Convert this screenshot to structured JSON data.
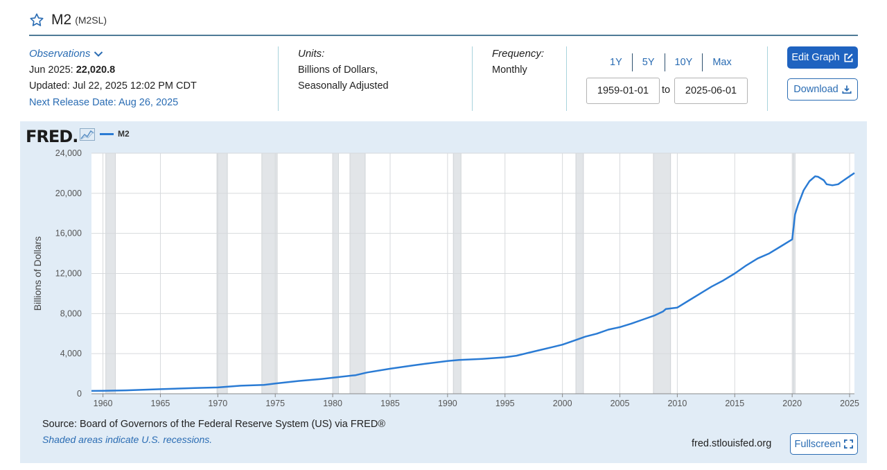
{
  "header": {
    "title": "M2",
    "series_id": "(M2SL)"
  },
  "observations": {
    "label": "Observations",
    "latest_period": "Jun 2025:",
    "latest_value": "22,020.8",
    "updated": "Updated: Jul 22, 2025 12:02 PM CDT",
    "next_release": "Next Release Date: Aug 26, 2025"
  },
  "units": {
    "label": "Units:",
    "line1": "Billions of Dollars,",
    "line2": "Seasonally Adjusted"
  },
  "frequency": {
    "label": "Frequency:",
    "value": "Monthly"
  },
  "range": {
    "buttons": [
      "1Y",
      "5Y",
      "10Y",
      "Max"
    ],
    "start": "1959-01-01",
    "to_label": "to",
    "end": "2025-06-01"
  },
  "actions": {
    "edit_graph": "Edit Graph",
    "download": "Download",
    "fullscreen": "Fullscreen"
  },
  "footer": {
    "source": "Source: Board of Governors of the Federal Reserve System (US) via FRED®",
    "shaded_note": "Shaded areas indicate U.S. recessions.",
    "url": "fred.stlouisfed.org"
  },
  "brand": {
    "logo": "FRED",
    "accent": "#2a7bd4",
    "link": "#2a6cb3",
    "panel_bg": "#e1ecf6"
  },
  "chart_data": {
    "type": "line",
    "ylabel": "Billions of Dollars",
    "ylim": [
      0,
      24000
    ],
    "xlim": [
      1959.0,
      2025.42
    ],
    "yticks": [
      0,
      4000,
      8000,
      12000,
      16000,
      20000,
      24000
    ],
    "ytick_labels": [
      "0",
      "4,000",
      "8,000",
      "12,000",
      "16,000",
      "20,000",
      "24,000"
    ],
    "xticks": [
      1960,
      1965,
      1970,
      1975,
      1980,
      1985,
      1990,
      1995,
      2000,
      2005,
      2010,
      2015,
      2020,
      2025
    ],
    "xtick_labels": [
      "1960",
      "1965",
      "1970",
      "1975",
      "1980",
      "1985",
      "1990",
      "1995",
      "2000",
      "2005",
      "2010",
      "2015",
      "2020",
      "2025"
    ],
    "grid": true,
    "legend": "top-left",
    "series": [
      {
        "name": "M2",
        "color": "#2a7bd4",
        "x": [
          1959.0,
          1960.0,
          1962.0,
          1965.0,
          1968.0,
          1970.0,
          1972.0,
          1974.0,
          1975.0,
          1977.0,
          1979.0,
          1980.0,
          1982.0,
          1983.0,
          1985.0,
          1987.0,
          1988.0,
          1990.0,
          1991.0,
          1993.0,
          1995.0,
          1996.0,
          1998.0,
          1999.0,
          2000.0,
          2001.0,
          2002.0,
          2003.0,
          2004.0,
          2005.0,
          2006.0,
          2007.0,
          2008.0,
          2008.75,
          2009.0,
          2010.0,
          2011.0,
          2012.0,
          2013.0,
          2014.0,
          2015.0,
          2016.0,
          2017.0,
          2018.0,
          2019.0,
          2020.0,
          2020.25,
          2020.5,
          2021.0,
          2021.5,
          2022.0,
          2022.25,
          2022.75,
          2023.0,
          2023.5,
          2024.0,
          2024.5,
          2025.0,
          2025.42
        ],
        "y": [
          286,
          300,
          340,
          459,
          567,
          626,
          802,
          878,
          1016,
          1270,
          1474,
          1600,
          1853,
          2125,
          2495,
          2830,
          2982,
          3271,
          3371,
          3479,
          3639,
          3800,
          4350,
          4620,
          4900,
          5300,
          5700,
          6000,
          6400,
          6650,
          7000,
          7400,
          7800,
          8200,
          8450,
          8600,
          9300,
          10000,
          10700,
          11300,
          12000,
          12800,
          13500,
          14000,
          14700,
          15400,
          17900,
          18800,
          20300,
          21200,
          21700,
          21650,
          21300,
          20900,
          20800,
          20900,
          21300,
          21700,
          22021
        ]
      }
    ],
    "recessions": [
      [
        1960.25,
        1961.08
      ],
      [
        1969.92,
        1970.83
      ],
      [
        1973.83,
        1975.17
      ],
      [
        1980.0,
        1980.5
      ],
      [
        1981.5,
        1982.83
      ],
      [
        1990.5,
        1991.17
      ],
      [
        2001.17,
        2001.83
      ],
      [
        2007.92,
        2009.42
      ],
      [
        2020.08,
        2020.25
      ]
    ]
  }
}
